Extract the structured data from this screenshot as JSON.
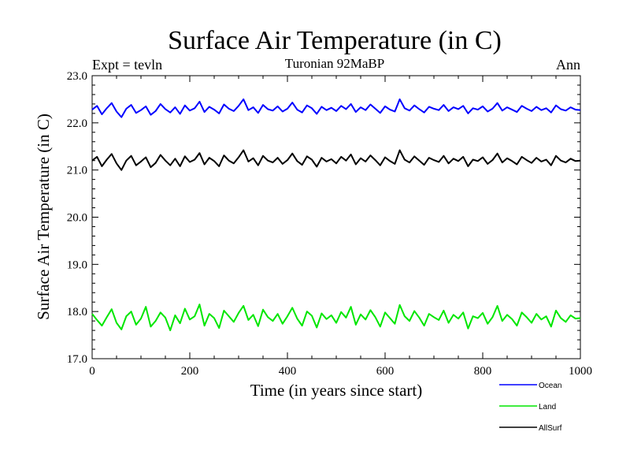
{
  "chart_data": {
    "type": "line",
    "title": "Surface Air Temperature (in C)",
    "subtitle": "Turonian  92MaBP",
    "left_label": "Expt = tevln",
    "right_label": "Ann",
    "xlabel": "Time (in years since start)",
    "ylabel": "Surface Air Temperature (in C)",
    "xlim": [
      0,
      1000
    ],
    "ylim": [
      17.0,
      23.0
    ],
    "x_ticks": [
      0,
      200,
      400,
      600,
      800,
      1000
    ],
    "x_tick_labels": [
      "0",
      "200",
      "400",
      "600",
      "800",
      "1000"
    ],
    "y_ticks": [
      17.0,
      18.0,
      19.0,
      20.0,
      21.0,
      22.0,
      23.0
    ],
    "y_tick_labels": [
      "17.0",
      "18.0",
      "19.0",
      "20.0",
      "21.0",
      "22.0",
      "23.0"
    ],
    "grid": false,
    "legend_position": "bottom-right",
    "series": [
      {
        "name": "Ocean",
        "color": "#0000ff",
        "values": [
          22.28,
          22.36,
          22.18,
          22.31,
          22.42,
          22.24,
          22.12,
          22.3,
          22.38,
          22.21,
          22.27,
          22.35,
          22.17,
          22.25,
          22.4,
          22.29,
          22.22,
          22.33,
          22.19,
          22.37,
          22.26,
          22.31,
          22.45,
          22.23,
          22.34,
          22.28,
          22.2,
          22.39,
          22.3,
          22.25,
          22.36,
          22.5,
          22.27,
          22.33,
          22.21,
          22.38,
          22.29,
          22.26,
          22.35,
          22.24,
          22.3,
          22.43,
          22.28,
          22.22,
          22.37,
          22.31,
          22.19,
          22.34,
          22.27,
          22.32,
          22.25,
          22.36,
          22.29,
          22.4,
          22.23,
          22.33,
          22.27,
          22.39,
          22.3,
          22.21,
          22.35,
          22.28,
          22.24,
          22.5,
          22.31,
          22.26,
          22.37,
          22.29,
          22.22,
          22.34,
          22.3,
          22.27,
          22.38,
          22.25,
          22.33,
          22.29,
          22.36,
          22.2,
          22.31,
          22.28,
          22.35,
          22.24,
          22.3,
          22.42,
          22.26,
          22.33,
          22.28,
          22.23,
          22.36,
          22.3,
          22.25,
          22.34,
          22.27,
          22.31,
          22.22,
          22.37,
          22.29,
          22.26,
          22.33,
          22.28,
          22.27
        ]
      },
      {
        "name": "Land",
        "color": "#00e600",
        "values": [
          17.95,
          17.82,
          17.7,
          17.88,
          18.05,
          17.76,
          17.62,
          17.9,
          18.0,
          17.72,
          17.85,
          18.1,
          17.68,
          17.8,
          17.98,
          17.87,
          17.6,
          17.92,
          17.75,
          18.06,
          17.83,
          17.9,
          18.15,
          17.7,
          17.95,
          17.86,
          17.65,
          18.02,
          17.9,
          17.78,
          17.97,
          18.12,
          17.82,
          17.93,
          17.69,
          18.04,
          17.88,
          17.8,
          17.95,
          17.74,
          17.9,
          18.08,
          17.85,
          17.7,
          18.0,
          17.91,
          17.66,
          17.96,
          17.84,
          17.92,
          17.76,
          17.99,
          17.87,
          18.1,
          17.72,
          17.94,
          17.83,
          18.03,
          17.88,
          17.68,
          17.98,
          17.86,
          17.74,
          18.14,
          17.9,
          17.8,
          18.01,
          17.87,
          17.7,
          17.95,
          17.88,
          17.82,
          18.02,
          17.76,
          17.93,
          17.85,
          17.98,
          17.64,
          17.9,
          17.86,
          17.97,
          17.74,
          17.88,
          18.12,
          17.8,
          17.93,
          17.84,
          17.7,
          17.98,
          17.88,
          17.76,
          17.95,
          17.83,
          17.9,
          17.68,
          18.02,
          17.86,
          17.78,
          17.92,
          17.85,
          17.86
        ]
      },
      {
        "name": "AllSurf",
        "color": "#000000",
        "values": [
          21.2,
          21.28,
          21.08,
          21.22,
          21.34,
          21.14,
          21.0,
          21.2,
          21.3,
          21.1,
          21.18,
          21.27,
          21.06,
          21.15,
          21.32,
          21.2,
          21.1,
          21.24,
          21.08,
          21.29,
          21.17,
          21.22,
          21.36,
          21.12,
          21.26,
          21.19,
          21.08,
          21.31,
          21.2,
          21.14,
          21.27,
          21.42,
          21.18,
          21.25,
          21.1,
          21.3,
          21.2,
          21.16,
          21.26,
          21.13,
          21.21,
          21.35,
          21.19,
          21.11,
          21.29,
          21.22,
          21.07,
          21.26,
          21.18,
          21.23,
          21.14,
          21.28,
          21.2,
          21.33,
          21.12,
          21.25,
          21.18,
          21.31,
          21.21,
          21.1,
          21.27,
          21.19,
          21.13,
          21.42,
          21.22,
          21.16,
          21.29,
          21.2,
          21.11,
          21.26,
          21.21,
          21.17,
          21.3,
          21.14,
          21.24,
          21.19,
          21.28,
          21.08,
          21.22,
          21.19,
          21.27,
          21.13,
          21.21,
          21.35,
          21.16,
          21.25,
          21.19,
          21.12,
          21.28,
          21.21,
          21.15,
          21.26,
          21.18,
          21.22,
          21.1,
          21.3,
          21.2,
          21.16,
          21.24,
          21.19,
          21.2
        ]
      }
    ]
  }
}
